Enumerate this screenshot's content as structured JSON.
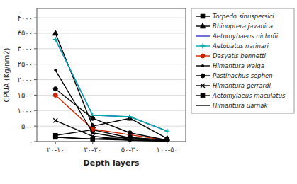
{
  "chart_data": {
    "type": "line",
    "xlabel": "Depth layers",
    "ylabel": "CPUA (Kg/nm2)",
    "categories": [
      "۲۰-۱۰",
      "۳۰-۲۰",
      "۵۰-۳۰",
      "۱۰۰-۵۰"
    ],
    "ylim": [
      0,
      4300
    ],
    "yticks": [
      {
        "value": 0,
        "label": "·"
      },
      {
        "value": 500,
        "label": "۵۰۰"
      },
      {
        "value": 1000,
        "label": "۱۰۰۰"
      },
      {
        "value": 1500,
        "label": "۱۵۰۰"
      },
      {
        "value": 2000,
        "label": "۲۰۰۰"
      },
      {
        "value": 2500,
        "label": "۲۵۰۰"
      },
      {
        "value": 3000,
        "label": "۳۰۰۰"
      },
      {
        "value": 3500,
        "label": "۳۵۰۰"
      },
      {
        "value": 4000,
        "label": "۴۰۰۰"
      }
    ],
    "grid": true,
    "legend": "right",
    "series": [
      {
        "name": "Torpedo sinuspersici",
        "color": "#000000",
        "marker": "square",
        "values": [
          200,
          380,
          120,
          50
        ]
      },
      {
        "name": "Rhinoptera javanica",
        "color": "#000000",
        "marker": "triangle",
        "values": [
          3500,
          500,
          750,
          100
        ]
      },
      {
        "name": "Aetomybaeus nichofii",
        "color": "#3333cc",
        "marker": "none",
        "values": [
          3300,
          850,
          800,
          340
        ]
      },
      {
        "name": "Aetobatus narinari",
        "color": "#00aaaa",
        "marker": "plus",
        "values": [
          3300,
          850,
          800,
          340
        ]
      },
      {
        "name": "Dasyatis bennetti",
        "color": "#cc2200",
        "marker": "circle",
        "values": [
          1500,
          400,
          220,
          40
        ]
      },
      {
        "name": "Himantura walga",
        "color": "#000000",
        "marker": "point",
        "values": [
          2300,
          280,
          80,
          25
        ]
      },
      {
        "name": "Pastinachus sephen",
        "color": "#000000",
        "marker": "circle",
        "values": [
          1700,
          750,
          280,
          45
        ]
      },
      {
        "name": "Himantura gerrardi",
        "color": "#000000",
        "marker": "x",
        "values": [
          680,
          170,
          40,
          15
        ]
      },
      {
        "name": "Aetomylaeus maculatus",
        "color": "#000000",
        "marker": "square",
        "values": [
          140,
          80,
          130,
          40
        ]
      },
      {
        "name": "Himantura uarnak",
        "color": "#000000",
        "marker": "none",
        "values": [
          140,
          80,
          45,
          15
        ]
      }
    ]
  }
}
